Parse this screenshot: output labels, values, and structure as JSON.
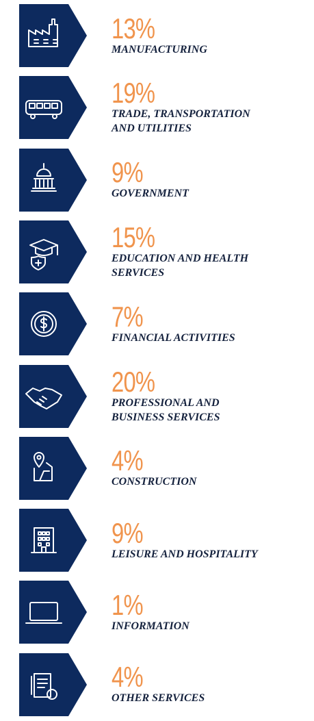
{
  "items": [
    {
      "percent": "13%",
      "label": [
        "MANUFACTURING"
      ]
    },
    {
      "percent": "19%",
      "label": [
        "TRADE, TRANSPORTATION",
        "AND UTILITIES"
      ]
    },
    {
      "percent": "9%",
      "label": [
        "GOVERNMENT"
      ]
    },
    {
      "percent": "15%",
      "label": [
        "EDUCATION AND HEALTH",
        "SERVICES"
      ]
    },
    {
      "percent": "7%",
      "label": [
        "FINANCIAL ACTIVITIES"
      ]
    },
    {
      "percent": "20%",
      "label": [
        "PROFESSIONAL AND",
        "BUSINESS SERVICES"
      ]
    },
    {
      "percent": "4%",
      "label": [
        "CONSTRUCTION"
      ]
    },
    {
      "percent": "9%",
      "label": [
        "LEISURE AND HOSPITALITY"
      ]
    },
    {
      "percent": "1%",
      "label": [
        "INFORMATION"
      ]
    },
    {
      "percent": "4%",
      "label": [
        "OTHER SERVICES"
      ]
    }
  ]
}
